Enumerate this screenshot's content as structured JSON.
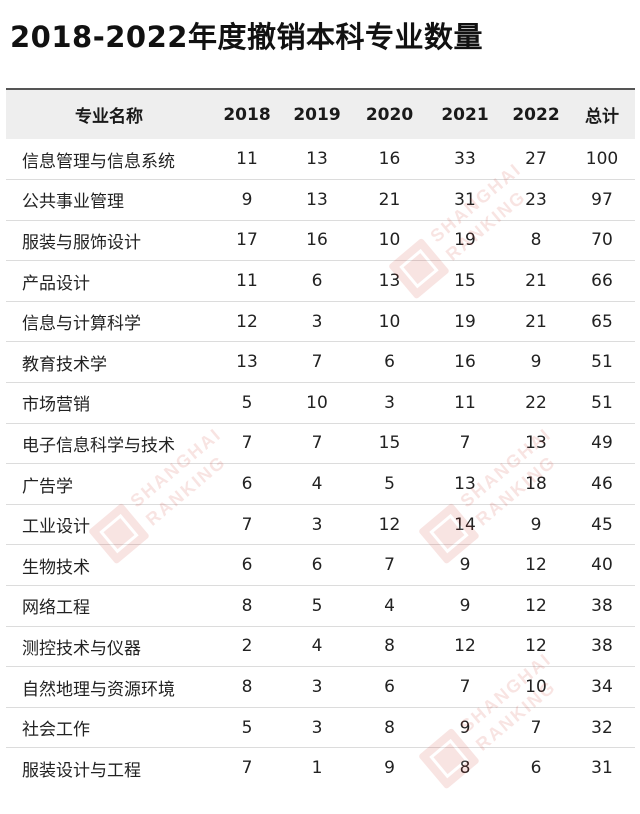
{
  "title": "2018-2022年度撤销本科专业数量",
  "table": {
    "headers": [
      "专业名称",
      "2018",
      "2019",
      "2020",
      "2021",
      "2022",
      "总计"
    ],
    "rows": [
      [
        "信息管理与信息系统",
        "11",
        "13",
        "16",
        "33",
        "27",
        "100"
      ],
      [
        "公共事业管理",
        "9",
        "13",
        "21",
        "31",
        "23",
        "97"
      ],
      [
        "服装与服饰设计",
        "17",
        "16",
        "10",
        "19",
        "8",
        "70"
      ],
      [
        "产品设计",
        "11",
        "6",
        "13",
        "15",
        "21",
        "66"
      ],
      [
        "信息与计算科学",
        "12",
        "3",
        "10",
        "19",
        "21",
        "65"
      ],
      [
        "教育技术学",
        "13",
        "7",
        "6",
        "16",
        "9",
        "51"
      ],
      [
        "市场营销",
        "5",
        "10",
        "3",
        "11",
        "22",
        "51"
      ],
      [
        "电子信息科学与技术",
        "7",
        "7",
        "15",
        "7",
        "13",
        "49"
      ],
      [
        "广告学",
        "6",
        "4",
        "5",
        "13",
        "18",
        "46"
      ],
      [
        "工业设计",
        "7",
        "3",
        "12",
        "14",
        "9",
        "45"
      ],
      [
        "生物技术",
        "6",
        "6",
        "7",
        "9",
        "12",
        "40"
      ],
      [
        "网络工程",
        "8",
        "5",
        "4",
        "9",
        "12",
        "38"
      ],
      [
        "测控技术与仪器",
        "2",
        "4",
        "8",
        "12",
        "12",
        "38"
      ],
      [
        "自然地理与资源环境",
        "8",
        "3",
        "6",
        "7",
        "10",
        "34"
      ],
      [
        "社会工作",
        "5",
        "3",
        "8",
        "9",
        "7",
        "32"
      ],
      [
        "服装设计与工程",
        "7",
        "1",
        "9",
        "8",
        "6",
        "31"
      ]
    ]
  },
  "watermark": {
    "line1": "SHANGHAI",
    "line2": "RANKING",
    "color": "#d0342c"
  }
}
